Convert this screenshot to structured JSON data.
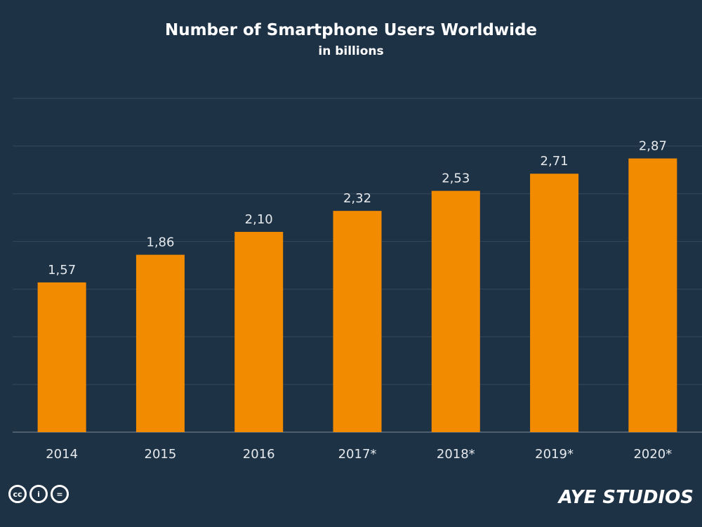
{
  "chart_data": {
    "type": "bar",
    "title": "Number of Smartphone Users Worldwide",
    "subtitle": "in billions",
    "categories": [
      "2014",
      "2015",
      "2016",
      "2017*",
      "2018*",
      "2019*",
      "2020*"
    ],
    "values": [
      1.57,
      1.86,
      2.1,
      2.32,
      2.53,
      2.71,
      2.87
    ],
    "value_labels": [
      "1,57",
      "1,86",
      "2,10",
      "2,32",
      "2,53",
      "2,71",
      "2,87"
    ],
    "xlabel": "",
    "ylabel": "",
    "ylim": [
      0,
      3.5
    ],
    "grid": true,
    "legend": "none",
    "colors": {
      "bar": "#f38b00",
      "background": "#1e3246",
      "grid": "#36495c",
      "text": "#ffffff",
      "label": "#e6e9ec"
    }
  },
  "footer": {
    "license_icons": [
      "cc",
      "by",
      "nd"
    ],
    "license_text": [
      "cc",
      "i",
      "="
    ],
    "brand_logo": "AYE STUDIOS"
  }
}
